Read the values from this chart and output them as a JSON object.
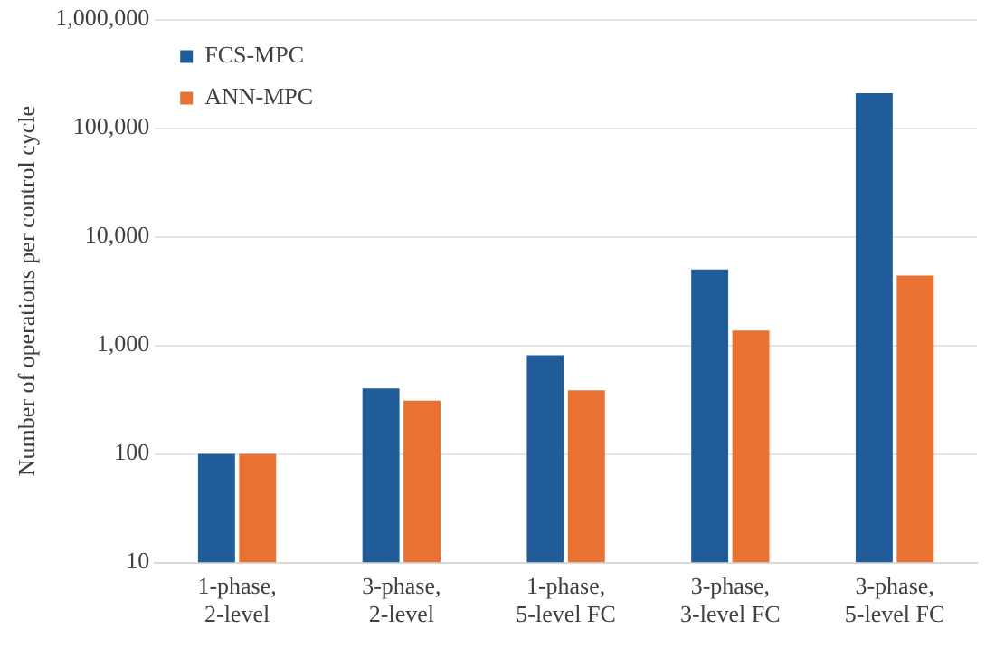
{
  "chart_data": {
    "type": "bar",
    "ylabel": "Number of operations per control cycle",
    "categories": [
      "1-phase,\n2-level",
      "3-phase,\n2-level",
      "1-phase,\n5-level FC",
      "3-phase,\n3-level FC",
      "3-phase,\n5-level FC"
    ],
    "series": [
      {
        "name": "FCS-MPC",
        "color": "#1f5c99",
        "values": [
          100,
          400,
          810,
          5000,
          210000
        ]
      },
      {
        "name": "ANN-MPC",
        "color": "#e97132",
        "values": [
          100,
          310,
          385,
          1370,
          4400
        ]
      }
    ],
    "log": true,
    "ylim": [
      10,
      1000000
    ],
    "yticks": [
      {
        "value": 10,
        "label": "10"
      },
      {
        "value": 100,
        "label": "100"
      },
      {
        "value": 1000,
        "label": "1,000"
      },
      {
        "value": 10000,
        "label": "10,000"
      },
      {
        "value": 100000,
        "label": "100,000"
      },
      {
        "value": 1000000,
        "label": "1,000,000"
      }
    ],
    "grid": "y",
    "legend": "top left"
  }
}
